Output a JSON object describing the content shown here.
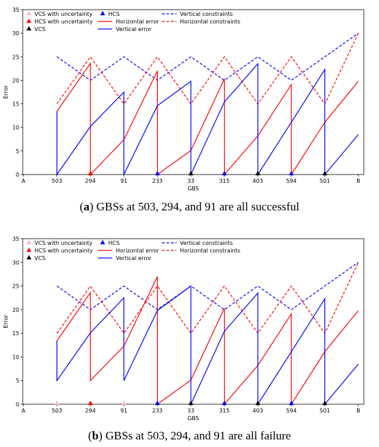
{
  "colors": {
    "hcs": "#ff0000",
    "vcs": "#0000ff",
    "vcs_uncertain": "#ffb6c1",
    "hcs_uncertain": "#ff0000",
    "vcs_marker": "#000000",
    "hcs_marker": "#0000ff"
  },
  "legend": {
    "vcs_uncertainty": "VCS with uncertainty",
    "hcs_uncertainty": "HCS with uncertainty",
    "vcs": "VCS",
    "hcs": "HCS",
    "horizontal_error": "Horizontal error",
    "vertical_error": "Vertical error",
    "vertical_constraints": "Vertical constraints",
    "horizontal_constraints": "Horizontal constraints"
  },
  "chart_data": [
    {
      "type": "line",
      "panel_label": "a",
      "caption": "GBSs at 503, 294, and 91 are all successful",
      "xlabel": "GBS",
      "ylabel": "Error",
      "categories": [
        "A",
        "503",
        "294",
        "91",
        "233",
        "33",
        "315",
        "403",
        "594",
        "501",
        "B"
      ],
      "ylim": [
        0,
        35
      ],
      "yticks": [
        0,
        5,
        10,
        15,
        20,
        25,
        30,
        35
      ],
      "series": [
        {
          "name": "Vertical constraints",
          "style": "dashed",
          "color": "#0000ff",
          "points": [
            [
              1,
              25
            ],
            [
              2,
              20
            ],
            [
              3,
              25
            ],
            [
              4,
              20
            ],
            [
              5,
              25
            ],
            [
              6,
              20
            ],
            [
              7,
              25
            ],
            [
              8,
              20
            ],
            [
              9,
              25
            ],
            [
              10,
              30
            ]
          ]
        },
        {
          "name": "Horizontal constraints",
          "style": "dashed",
          "color": "#ff0000",
          "points": [
            [
              1,
              15
            ],
            [
              2,
              25
            ],
            [
              3,
              15
            ],
            [
              4,
              25
            ],
            [
              5,
              15
            ],
            [
              6,
              25
            ],
            [
              7,
              15
            ],
            [
              8,
              25
            ],
            [
              9,
              15
            ],
            [
              10,
              30
            ]
          ]
        },
        {
          "name": "Horizontal error",
          "style": "solid",
          "color": "#ff0000",
          "points": [
            [
              1,
              13.4
            ],
            [
              2,
              23.6
            ],
            [
              2,
              0
            ],
            [
              3,
              7.4
            ],
            [
              4,
              22.0
            ],
            [
              4,
              0
            ],
            [
              5,
              5.1
            ],
            [
              6,
              20.3
            ],
            [
              6,
              0
            ],
            [
              7,
              8.2
            ],
            [
              8,
              19.1
            ],
            [
              8,
              0
            ],
            [
              9,
              11.1
            ],
            [
              10,
              19.8
            ]
          ]
        },
        {
          "name": "Vertical error",
          "style": "solid",
          "color": "#0000ff",
          "points": [
            [
              1,
              13.4
            ],
            [
              1,
              0
            ],
            [
              2,
              10.2
            ],
            [
              3,
              17.5
            ],
            [
              3,
              0
            ],
            [
              4,
              14.6
            ],
            [
              5,
              19.8
            ],
            [
              5,
              0
            ],
            [
              6,
              15.4
            ],
            [
              7,
              23.5
            ],
            [
              7,
              0
            ],
            [
              8,
              11.1
            ],
            [
              9,
              22.3
            ],
            [
              9,
              0
            ],
            [
              10,
              8.5
            ]
          ]
        }
      ],
      "markers": [
        {
          "x": 2,
          "kind": "HCS with uncertainty",
          "color": "#ff0000"
        },
        {
          "x": 4,
          "kind": "HCS",
          "color": "#0000ff"
        },
        {
          "x": 5,
          "kind": "VCS",
          "color": "#000000"
        },
        {
          "x": 6,
          "kind": "HCS",
          "color": "#0000ff"
        },
        {
          "x": 7,
          "kind": "VCS",
          "color": "#000000"
        },
        {
          "x": 8,
          "kind": "HCS",
          "color": "#0000ff"
        },
        {
          "x": 9,
          "kind": "VCS",
          "color": "#000000"
        }
      ]
    },
    {
      "type": "line",
      "panel_label": "b",
      "caption": "GBSs at 503, 294, and 91 are all failure",
      "xlabel": "GBS",
      "ylabel": "Error",
      "categories": [
        "A",
        "503",
        "294",
        "91",
        "233",
        "33",
        "315",
        "403",
        "594",
        "501",
        "B"
      ],
      "ylim": [
        0,
        35
      ],
      "yticks": [
        0,
        5,
        10,
        15,
        20,
        25,
        30,
        35
      ],
      "series": [
        {
          "name": "Vertical constraints",
          "style": "dashed",
          "color": "#0000ff",
          "points": [
            [
              1,
              25
            ],
            [
              2,
              20
            ],
            [
              3,
              25
            ],
            [
              4,
              20
            ],
            [
              5,
              25
            ],
            [
              6,
              20
            ],
            [
              7,
              25
            ],
            [
              8,
              20
            ],
            [
              9,
              25
            ],
            [
              10,
              30
            ]
          ]
        },
        {
          "name": "Horizontal constraints",
          "style": "dashed",
          "color": "#ff0000",
          "points": [
            [
              1,
              15
            ],
            [
              2,
              25
            ],
            [
              3,
              15
            ],
            [
              4,
              25
            ],
            [
              5,
              15
            ],
            [
              6,
              25
            ],
            [
              7,
              15
            ],
            [
              8,
              25
            ],
            [
              9,
              15
            ],
            [
              10,
              30
            ]
          ]
        },
        {
          "name": "Horizontal error",
          "style": "solid",
          "color": "#ff0000",
          "points": [
            [
              1,
              13.4
            ],
            [
              2,
              23.6
            ],
            [
              2,
              5.0
            ],
            [
              3,
              12.3
            ],
            [
              4,
              27.0
            ],
            [
              4,
              0
            ],
            [
              5,
              5.1
            ],
            [
              6,
              20.3
            ],
            [
              6,
              0
            ],
            [
              7,
              8.2
            ],
            [
              8,
              19.1
            ],
            [
              8,
              0
            ],
            [
              9,
              11.1
            ],
            [
              10,
              19.8
            ]
          ]
        },
        {
          "name": "Vertical error",
          "style": "solid",
          "color": "#0000ff",
          "points": [
            [
              1,
              13.4
            ],
            [
              1,
              5.0
            ],
            [
              2,
              15.1
            ],
            [
              3,
              22.5
            ],
            [
              3,
              5.0
            ],
            [
              4,
              19.8
            ],
            [
              5,
              25.0
            ],
            [
              5,
              0
            ],
            [
              6,
              15.4
            ],
            [
              7,
              23.5
            ],
            [
              7,
              0
            ],
            [
              8,
              11.1
            ],
            [
              9,
              22.3
            ],
            [
              9,
              0
            ],
            [
              10,
              8.5
            ]
          ]
        }
      ],
      "markers": [
        {
          "x": 1,
          "kind": "VCS with uncertainty",
          "color": "#ffb6c1"
        },
        {
          "x": 2,
          "kind": "HCS with uncertainty",
          "color": "#ff0000"
        },
        {
          "x": 3,
          "kind": "VCS with uncertainty",
          "color": "#ffb6c1"
        },
        {
          "x": 4,
          "kind": "HCS",
          "color": "#0000ff"
        },
        {
          "x": 5,
          "kind": "VCS",
          "color": "#000000"
        },
        {
          "x": 6,
          "kind": "HCS",
          "color": "#0000ff"
        },
        {
          "x": 7,
          "kind": "VCS",
          "color": "#000000"
        },
        {
          "x": 8,
          "kind": "HCS",
          "color": "#0000ff"
        },
        {
          "x": 9,
          "kind": "VCS",
          "color": "#000000"
        }
      ]
    }
  ]
}
